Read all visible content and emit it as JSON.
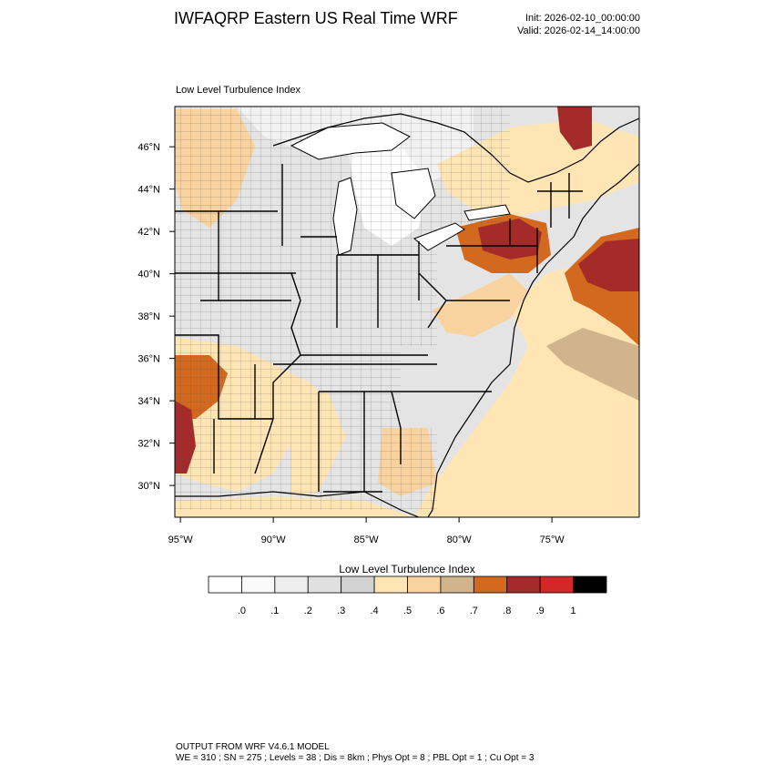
{
  "header": {
    "title": "IWFAQRP Eastern US Real Time WRF",
    "init": "Init: 2026-02-10_00:00:00",
    "valid": "Valid: 2026-02-14_14:00:00"
  },
  "map": {
    "field_name": "Low Level Turbulence Index",
    "lat_labels": [
      "30°N",
      "32°N",
      "34°N",
      "36°N",
      "38°N",
      "40°N",
      "42°N",
      "44°N",
      "46°N"
    ],
    "lon_labels": [
      "95°W",
      "90°W",
      "85°W",
      "80°W",
      "75°W"
    ],
    "lat_values": [
      30,
      32,
      34,
      36,
      38,
      40,
      42,
      44,
      46
    ],
    "lon_values": [
      -95,
      -90,
      -85,
      -80,
      -75
    ],
    "colors": {
      "land_low": "#e6e6e6",
      "water": "#ffffff"
    }
  },
  "colorbar": {
    "title": "Low Level Turbulence Index",
    "labels": [
      ".0",
      ".1",
      ".2",
      ".3",
      ".4",
      ".5",
      ".6",
      ".7",
      ".8",
      ".9",
      "1"
    ],
    "colors": [
      "#ffffff",
      "#f9f9f9",
      "#eeeeee",
      "#e0e0e0",
      "#d3d3d3",
      "#ffe5b4",
      "#f8d3a0",
      "#d2b48c",
      "#d2691e",
      "#a52a2a",
      "#d62728",
      "#000000"
    ]
  },
  "footer": {
    "line1": "OUTPUT FROM WRF V4.6.1 MODEL",
    "line2": "WE = 310 ; SN = 275 ; Levels = 38 ; Dis = 8km ; Phys Opt = 8 ; PBL Opt = 1 ; Cu Opt = 3"
  }
}
